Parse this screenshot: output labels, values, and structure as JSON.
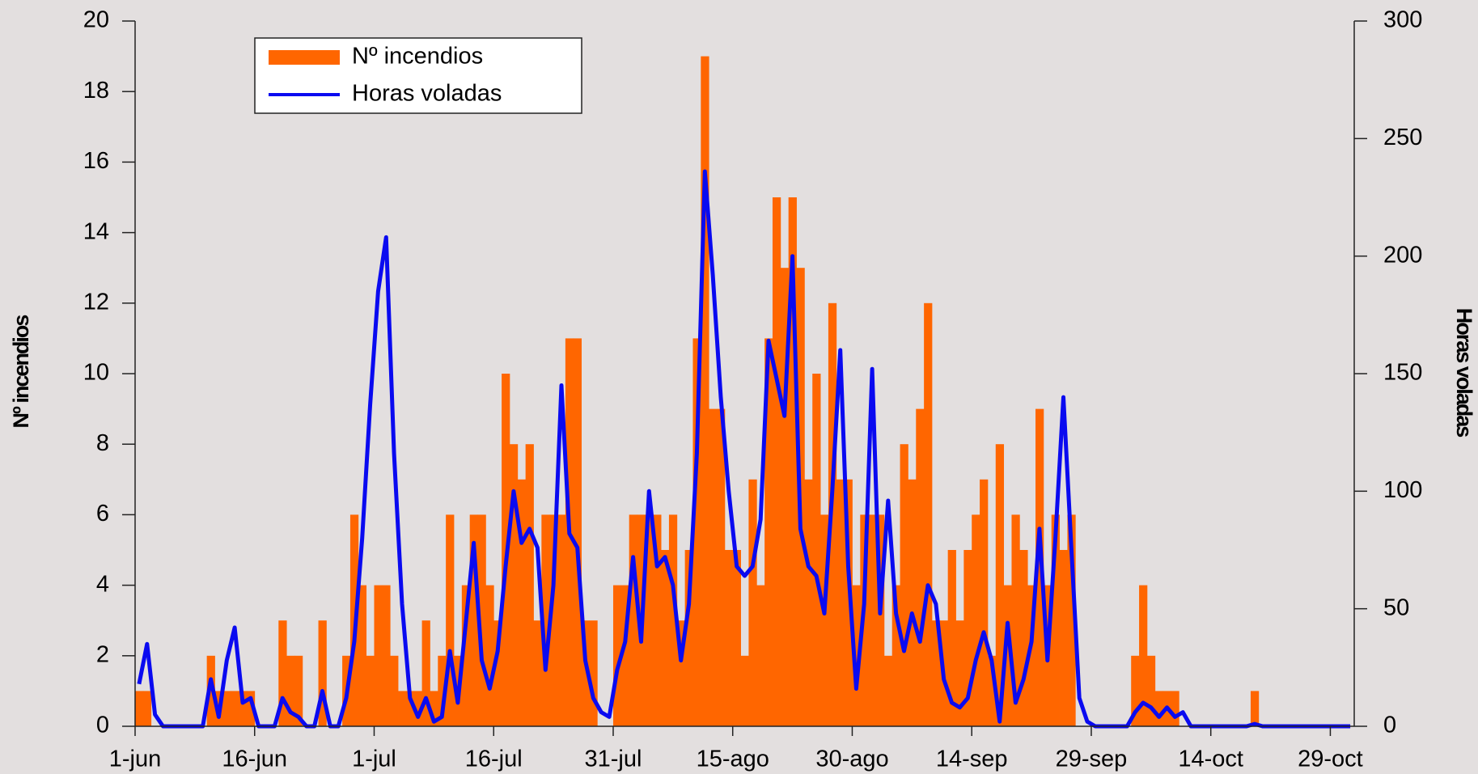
{
  "chart_data": {
    "type": "bar-line",
    "ylabel": "Nº incendios",
    "y2label": "Horas voladas",
    "legend": "upper left",
    "categories": [
      "1-jun",
      null,
      null,
      null,
      null,
      null,
      null,
      null,
      null,
      null,
      null,
      null,
      null,
      null,
      null,
      "16-jun",
      null,
      null,
      null,
      null,
      null,
      null,
      null,
      null,
      null,
      null,
      null,
      null,
      null,
      null,
      "1-jul",
      null,
      null,
      null,
      null,
      null,
      null,
      null,
      null,
      null,
      null,
      null,
      null,
      null,
      null,
      "16-jul",
      null,
      null,
      null,
      null,
      null,
      null,
      null,
      null,
      null,
      null,
      null,
      null,
      null,
      null,
      "31-jul",
      null,
      null,
      null,
      null,
      null,
      null,
      null,
      null,
      null,
      null,
      null,
      null,
      null,
      null,
      "15-ago",
      null,
      null,
      null,
      null,
      null,
      null,
      null,
      null,
      null,
      null,
      null,
      null,
      null,
      null,
      "30-ago",
      null,
      null,
      null,
      null,
      null,
      null,
      null,
      null,
      null,
      null,
      null,
      null,
      null,
      null,
      "14-sep",
      null,
      null,
      null,
      null,
      null,
      null,
      null,
      null,
      null,
      null,
      null,
      null,
      null,
      null,
      "29-sep",
      null,
      null,
      null,
      null,
      null,
      null,
      null,
      null,
      null,
      null,
      null,
      null,
      null,
      null,
      "14-oct",
      null,
      null,
      null,
      null,
      null,
      null,
      null,
      null,
      null,
      null,
      null,
      null,
      null,
      null,
      "29-oct",
      null,
      null
    ],
    "series": [
      {
        "name": "Nº incendios",
        "type": "bar",
        "color": "#ff6600",
        "values": [
          1,
          1,
          0,
          0,
          0,
          0,
          0,
          0,
          0,
          2,
          1,
          1,
          1,
          1,
          1,
          0,
          0,
          0,
          3,
          2,
          2,
          0,
          0,
          3,
          0,
          0,
          2,
          6,
          4,
          2,
          4,
          4,
          2,
          1,
          1,
          1,
          3,
          1,
          2,
          6,
          2,
          4,
          6,
          6,
          4,
          3,
          10,
          8,
          7,
          8,
          3,
          6,
          6,
          6,
          11,
          11,
          3,
          3,
          0,
          0,
          4,
          4,
          6,
          6,
          6,
          6,
          5,
          6,
          3,
          5,
          11,
          19,
          9,
          9,
          5,
          5,
          2,
          7,
          4,
          11,
          15,
          13,
          15,
          13,
          7,
          10,
          6,
          12,
          7,
          7,
          4,
          6,
          6,
          6,
          2,
          4,
          8,
          7,
          9,
          12,
          3,
          3,
          5,
          3,
          5,
          6,
          7,
          2,
          8,
          4,
          6,
          5,
          4,
          9,
          4,
          6,
          5,
          6,
          0,
          0,
          0,
          0,
          0,
          0,
          0,
          2,
          4,
          2,
          1,
          1,
          1,
          0,
          0,
          0,
          0,
          0,
          0,
          0,
          0,
          0,
          1,
          0,
          0,
          0,
          0,
          0,
          0,
          0,
          0,
          0,
          0,
          0,
          0
        ]
      },
      {
        "name": "Horas voladas",
        "type": "line",
        "axis": "y2",
        "color": "#0a0af0",
        "values": [
          18,
          35,
          5,
          0,
          0,
          0,
          0,
          0,
          0,
          20,
          4,
          28,
          42,
          10,
          12,
          0,
          0,
          0,
          12,
          6,
          4,
          0,
          0,
          15,
          0,
          0,
          12,
          36,
          80,
          137,
          185,
          208,
          116,
          52,
          12,
          4,
          12,
          2,
          4,
          32,
          10,
          44,
          78,
          28,
          16,
          32,
          68,
          100,
          78,
          84,
          76,
          24,
          60,
          145,
          82,
          76,
          28,
          12,
          6,
          4,
          24,
          36,
          72,
          36,
          100,
          68,
          72,
          60,
          28,
          52,
          116,
          236,
          192,
          140,
          100,
          68,
          64,
          68,
          88,
          164,
          148,
          132,
          200,
          84,
          68,
          64,
          48,
          100,
          160,
          68,
          16,
          52,
          152,
          48,
          96,
          48,
          32,
          48,
          36,
          60,
          52,
          20,
          10,
          8,
          12,
          28,
          40,
          28,
          2,
          44,
          10,
          20,
          36,
          84,
          28,
          80,
          140,
          76,
          12,
          2,
          0,
          0,
          0,
          0,
          0,
          6,
          10,
          8,
          4,
          8,
          4,
          6,
          0,
          0,
          0,
          0,
          0,
          0,
          0,
          0,
          1,
          0,
          0,
          0,
          0,
          0,
          0,
          0,
          0,
          0,
          0,
          0,
          0
        ]
      }
    ],
    "ylim": [
      0,
      20
    ],
    "yticks": [
      0,
      2,
      4,
      6,
      8,
      10,
      12,
      14,
      16,
      18,
      20
    ],
    "y2lim": [
      0,
      300
    ],
    "y2ticks": [
      0,
      50,
      100,
      150,
      200,
      250,
      300
    ]
  }
}
